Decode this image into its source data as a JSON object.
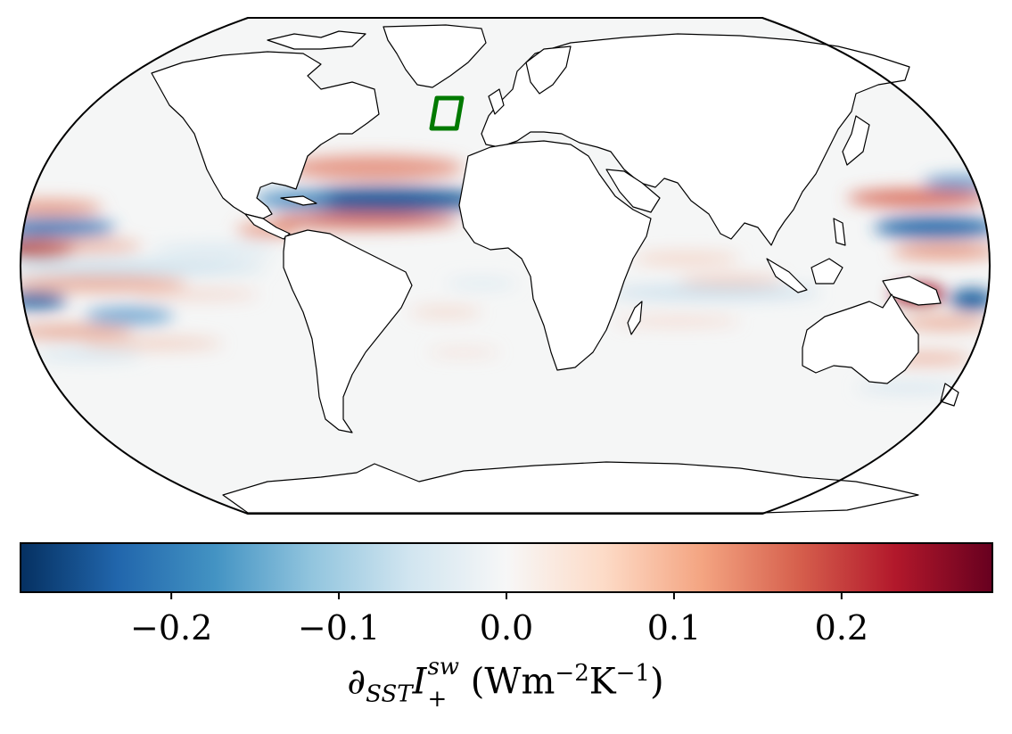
{
  "colorbar": {
    "colors": [
      "#053061",
      "#2166ac",
      "#4393c3",
      "#92c5de",
      "#d1e5f0",
      "#f7f7f7",
      "#fddbc7",
      "#f4a582",
      "#d6604d",
      "#b2182b",
      "#67001f"
    ],
    "ticks": [
      "−0.2",
      "−0.1",
      "0.0",
      "0.1",
      "0.2"
    ],
    "range": [
      -0.29,
      0.29
    ],
    "label": {
      "symbol": "∂",
      "sub1": "SST",
      "var": "I",
      "sup_var": "sw",
      "sub_var": "+",
      "unit_open": " (Wm",
      "exp1": "−2",
      "unit_mid": "K",
      "exp2": "−1",
      "unit_close": ")"
    }
  },
  "map": {
    "projection": "Robinson",
    "ocean_color": "#f5f6f6",
    "land_color": "#ffffff",
    "box_color": "#007a00"
  }
}
